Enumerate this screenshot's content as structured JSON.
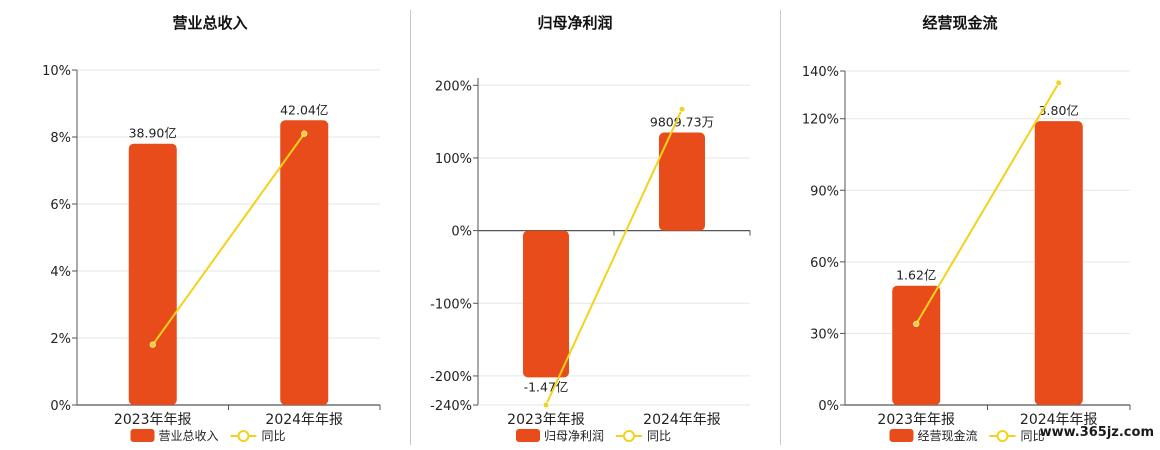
{
  "watermark": "www.365jz.com",
  "colors": {
    "bar": "#E84C1B",
    "line": "#F2D21A",
    "grid": "#e6e6e6",
    "axis": "#555555",
    "text": "#222222"
  },
  "chart_data": [
    {
      "type": "bar",
      "title": "营业总收入",
      "categories": [
        "2023年年报",
        "2024年年报"
      ],
      "series": [
        {
          "name": "营业总收入",
          "kind": "bar",
          "values": [
            7.8,
            8.5
          ],
          "data_labels": [
            "38.90亿",
            "42.04亿"
          ]
        },
        {
          "name": "同比",
          "kind": "line",
          "values": [
            1.8,
            8.1
          ]
        }
      ],
      "yticks": [
        0,
        2,
        4,
        6,
        8,
        10
      ],
      "ytick_labels": [
        "0%",
        "2%",
        "4%",
        "6%",
        "8%",
        "10%"
      ],
      "ylim": [
        0,
        10
      ],
      "grid": true,
      "legend": "bottom"
    },
    {
      "type": "bar",
      "title": "归母净利润",
      "categories": [
        "2023年年报",
        "2024年年报"
      ],
      "series": [
        {
          "name": "归母净利润",
          "kind": "bar",
          "values": [
            -202,
            135
          ],
          "data_labels": [
            "-1.47亿",
            "9809.73万"
          ]
        },
        {
          "name": "同比",
          "kind": "line",
          "values": [
            -240,
            167
          ]
        }
      ],
      "yticks": [
        -240,
        -200,
        -100,
        0,
        100,
        200
      ],
      "ytick_labels": [
        "-240%",
        "-200%",
        "-100%",
        "0%",
        "100%",
        "200%"
      ],
      "ylim": [
        -240,
        210
      ],
      "grid": true,
      "legend": "bottom"
    },
    {
      "type": "bar",
      "title": "经营现金流",
      "categories": [
        "2023年年报",
        "2024年年报"
      ],
      "series": [
        {
          "name": "经营现金流",
          "kind": "bar",
          "values": [
            50,
            119
          ],
          "data_labels": [
            "1.62亿",
            "3.80亿"
          ]
        },
        {
          "name": "同比",
          "kind": "line",
          "values": [
            34,
            135
          ]
        }
      ],
      "yticks": [
        0,
        30,
        60,
        90,
        120,
        140
      ],
      "ytick_labels": [
        "0%",
        "30%",
        "60%",
        "90%",
        "120%",
        "140%"
      ],
      "ylim": [
        0,
        140
      ],
      "grid": true,
      "legend": "bottom"
    }
  ]
}
